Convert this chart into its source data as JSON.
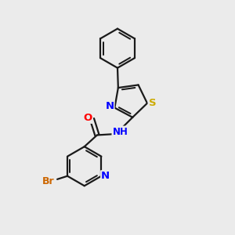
{
  "background_color": "#ebebeb",
  "bond_color": "#1a1a1a",
  "bond_width": 1.6,
  "atom_colors": {
    "N": "#0000ff",
    "O": "#ff0000",
    "S": "#ccaa00",
    "Br": "#cc6600",
    "C": "#1a1a1a"
  },
  "font_size_atom": 9.5,
  "font_size_br": 9.0,
  "font_size_nh": 8.5
}
